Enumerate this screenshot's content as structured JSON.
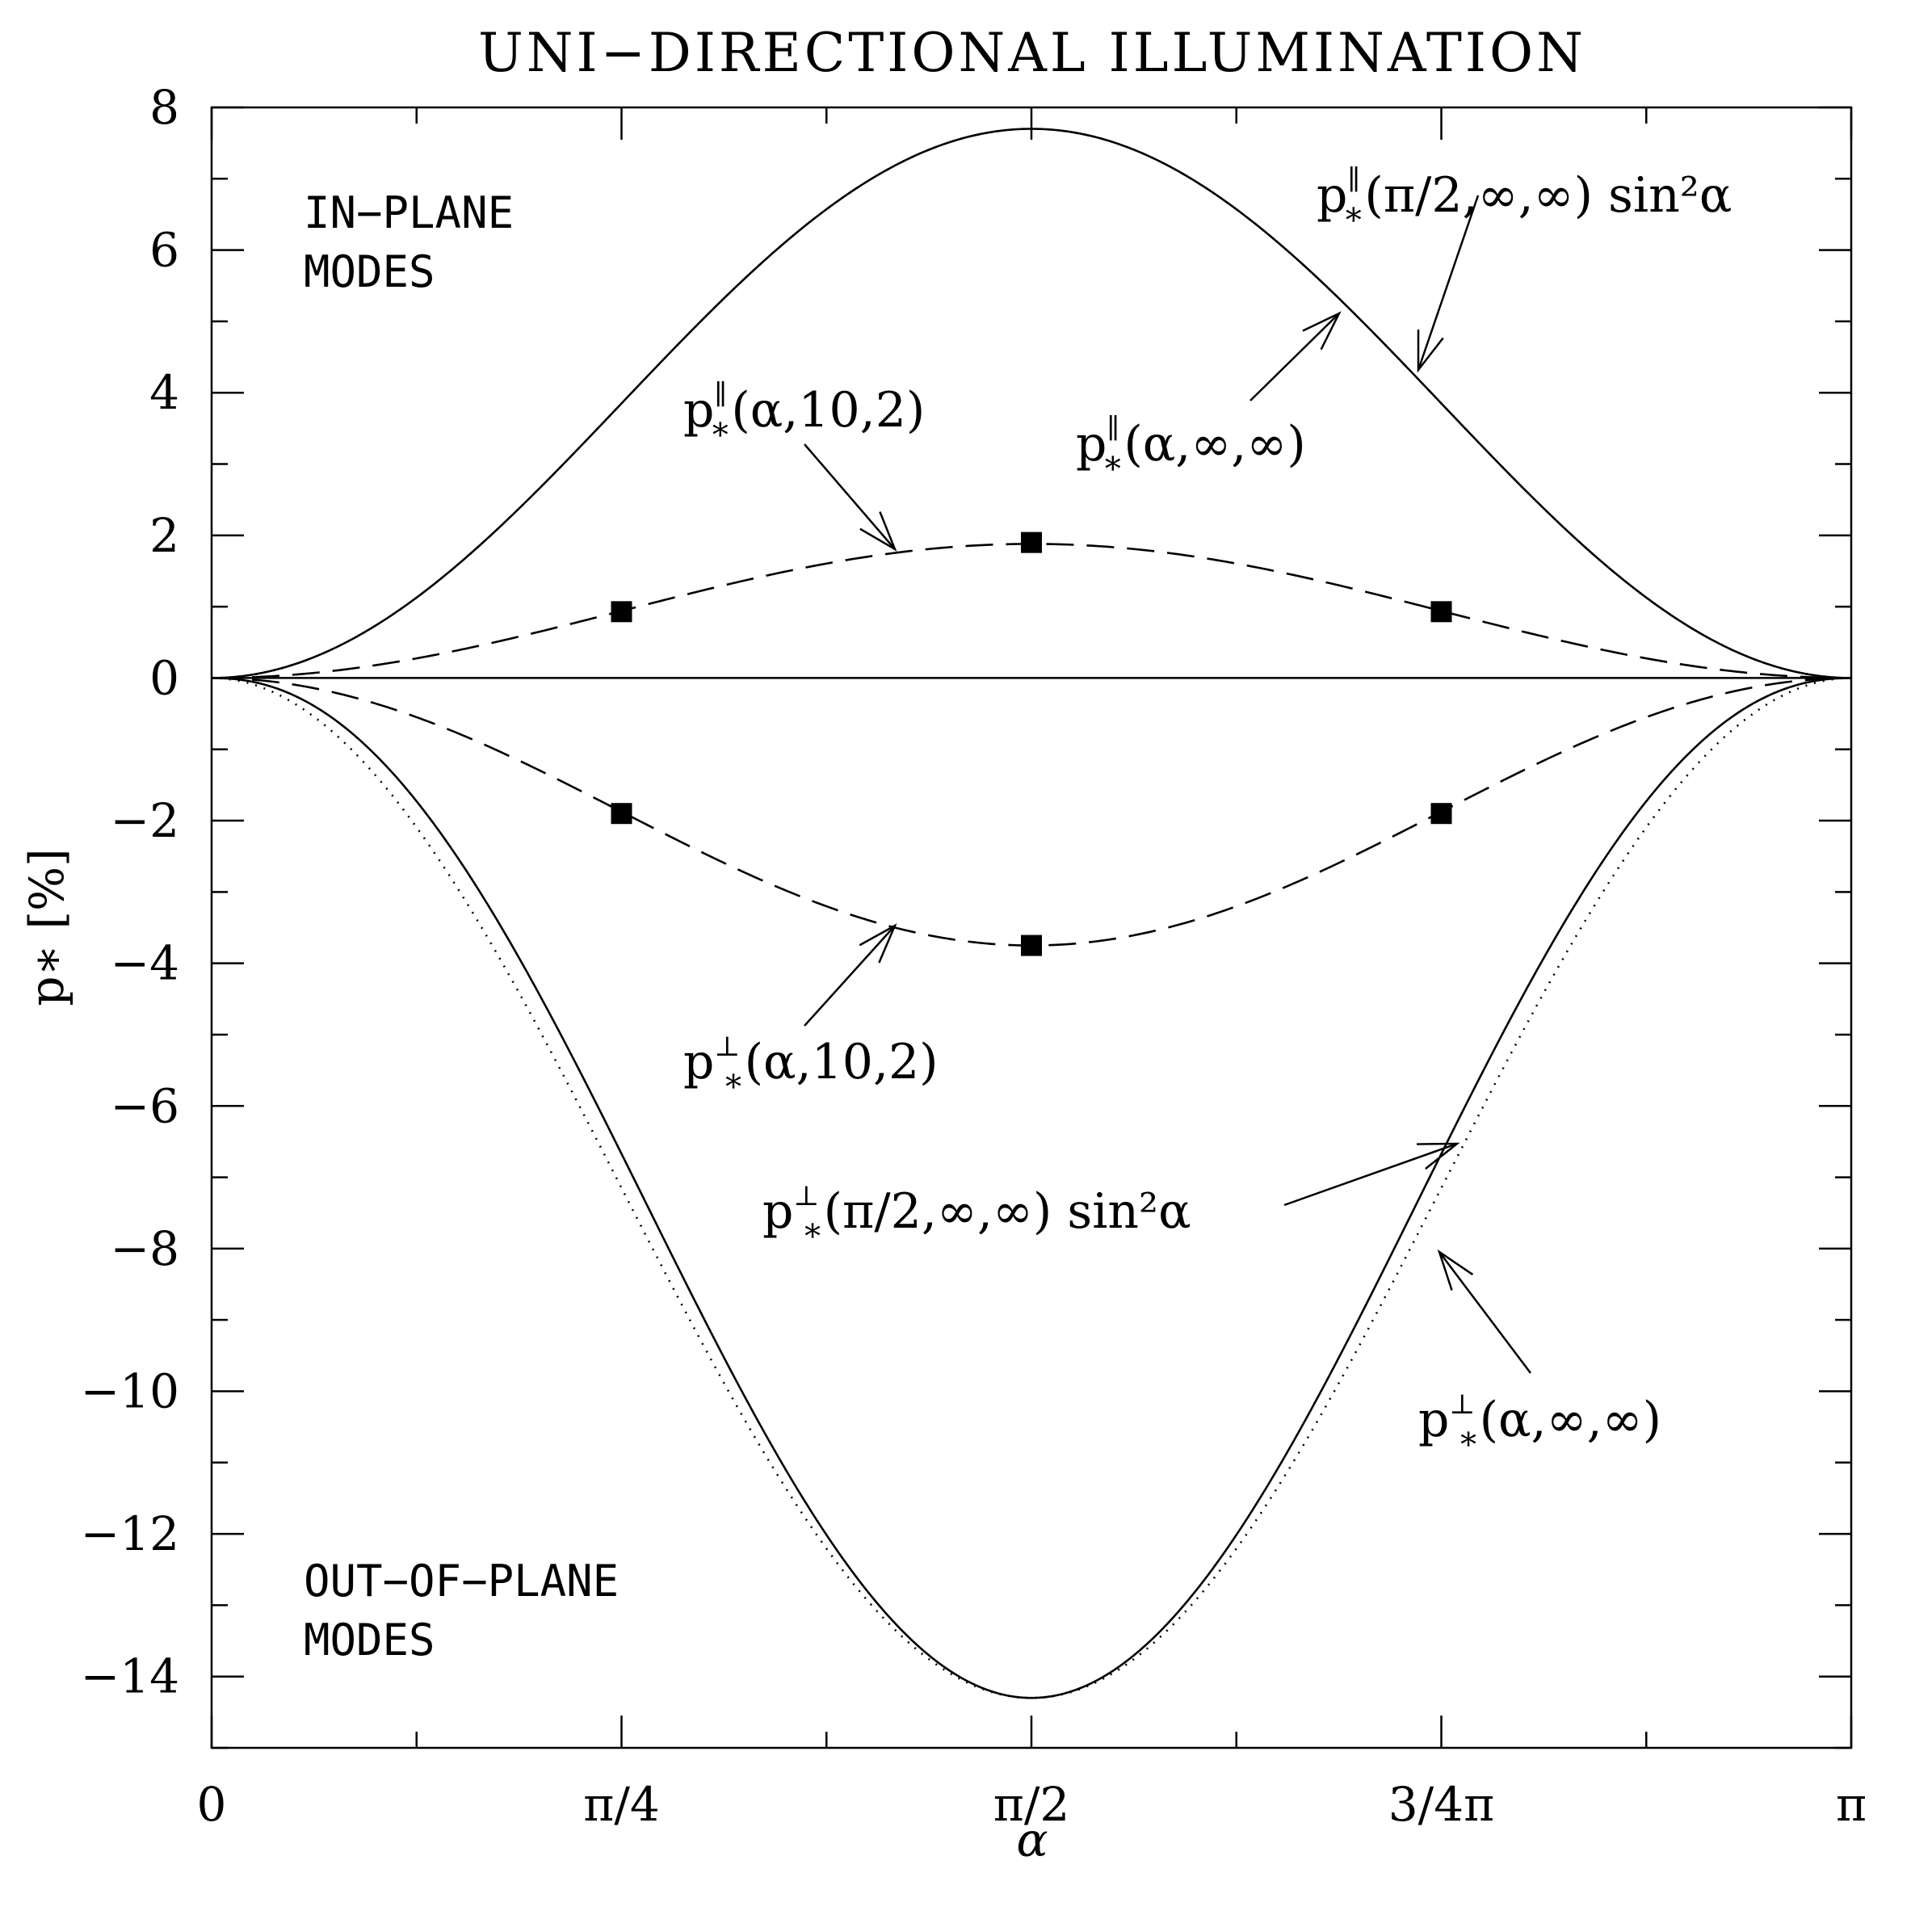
{
  "chart_data": {
    "type": "line",
    "title": "UNI−DIRECTIONAL ILLUMINATION",
    "xlabel": "α",
    "ylabel": "p∗ [%]",
    "xlim": [
      0,
      3.14159
    ],
    "ylim": [
      -15,
      8
    ],
    "x_ticks": [
      {
        "value": 0,
        "label": "0"
      },
      {
        "value": 0.7854,
        "label": "π/4"
      },
      {
        "value": 1.5708,
        "label": "π/2"
      },
      {
        "value": 2.3562,
        "label": "3/4π"
      },
      {
        "value": 3.14159,
        "label": "π"
      }
    ],
    "y_ticks": [
      {
        "value": 8,
        "label": "8"
      },
      {
        "value": 6,
        "label": "6"
      },
      {
        "value": 4,
        "label": "4"
      },
      {
        "value": 2,
        "label": "2"
      },
      {
        "value": 0,
        "label": "0"
      },
      {
        "value": -2,
        "label": "−2"
      },
      {
        "value": -4,
        "label": "−4"
      },
      {
        "value": -6,
        "label": "−6"
      },
      {
        "value": -8,
        "label": "−8"
      },
      {
        "value": -10,
        "label": "−10"
      },
      {
        "value": -12,
        "label": "−12"
      },
      {
        "value": -14,
        "label": "−14"
      }
    ],
    "series": [
      {
        "name": "in-plane-exact",
        "style": "solid",
        "amplitude": 7.7,
        "exponent": 2,
        "label_main": "p",
        "label_super": "∥",
        "label_sub": "∗",
        "label_args": "(α,∞,∞)"
      },
      {
        "name": "in-plane-sin2",
        "style": "dotted",
        "amplitude": 7.7,
        "exponent": 2,
        "label_main": "p",
        "label_super": "∥",
        "label_sub": "∗",
        "label_args": "(π/2,∞,∞) sin²α"
      },
      {
        "name": "in-plane-10-2",
        "style": "dashed",
        "amplitude": 1.88,
        "exponent": 2,
        "label_main": "p",
        "label_super": "∥",
        "label_sub": "∗",
        "label_args": "(α,10,2)"
      },
      {
        "name": "out-of-plane-exact",
        "style": "solid",
        "amplitude": -14.3,
        "exponent": 2.2,
        "label_main": "p",
        "label_super": "⊥",
        "label_sub": "∗",
        "label_args": "(α,∞,∞)"
      },
      {
        "name": "out-of-plane-sin2",
        "style": "dotted",
        "amplitude": -14.3,
        "exponent": 2,
        "label_main": "p",
        "label_super": "⊥",
        "label_sub": "∗",
        "label_args": "(π/2,∞,∞) sin²α"
      },
      {
        "name": "out-of-plane-10-2",
        "style": "dashed",
        "amplitude": -3.75,
        "exponent": 2,
        "label_main": "p",
        "label_super": "⊥",
        "label_sub": "∗",
        "label_args": "(α,10,2)"
      }
    ],
    "markers": [
      {
        "x": 0.7854,
        "y": 0.93
      },
      {
        "x": 1.5708,
        "y": 1.9
      },
      {
        "x": 2.3562,
        "y": 0.93
      },
      {
        "x": 0.7854,
        "y": -1.9
      },
      {
        "x": 1.5708,
        "y": -3.75
      },
      {
        "x": 2.3562,
        "y": -1.9
      }
    ],
    "annotations": {
      "in_plane": [
        "IN−PLANE",
        "MODES"
      ],
      "out_of_plane": [
        "OUT−OF−PLANE",
        "MODES"
      ]
    }
  }
}
